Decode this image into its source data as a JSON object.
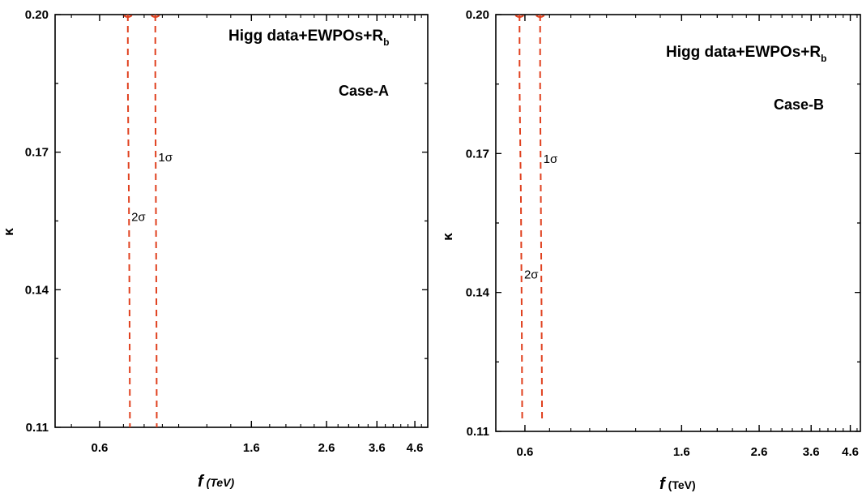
{
  "colors": {
    "contour": "#e0401e",
    "axis": "#000000"
  },
  "chart_data": [
    {
      "type": "line",
      "scale_x": "log",
      "xlim": [
        0.45,
        5.0
      ],
      "ylim": [
        0.11,
        0.2
      ],
      "x_ticks": [
        0.6,
        1.6,
        2.6,
        3.6,
        4.6
      ],
      "y_ticks": [
        0.11,
        0.14,
        0.17,
        0.2
      ],
      "xlabel": "f",
      "xlabel_unit": "(TeV)",
      "ylabel": "κ",
      "annotation": {
        "line1_main": "Higg data+EWPOs+R",
        "line1_sub": "b",
        "case": "Case-A"
      },
      "series": [
        {
          "name": "2σ",
          "points": [
            [
              0.72,
              0.2
            ],
            [
              0.72,
              0.185
            ],
            [
              0.725,
              0.16
            ],
            [
              0.728,
              0.135
            ],
            [
              0.73,
              0.11
            ]
          ]
        },
        {
          "name": "1σ",
          "points": [
            [
              0.86,
              0.2
            ],
            [
              0.86,
              0.185
            ],
            [
              0.863,
              0.16
            ],
            [
              0.866,
              0.135
            ],
            [
              0.868,
              0.11
            ]
          ]
        }
      ]
    },
    {
      "type": "line",
      "scale_x": "log",
      "xlim": [
        0.5,
        4.9
      ],
      "ylim": [
        0.11,
        0.2
      ],
      "x_ticks": [
        0.6,
        1.6,
        2.6,
        3.6,
        4.6
      ],
      "y_ticks": [
        0.11,
        0.14,
        0.17,
        0.2
      ],
      "xlabel": "f",
      "xlabel_unit": "(TeV)",
      "ylabel": "κ",
      "annotation": {
        "line1_main": "Higg data+EWPOs+R",
        "line1_sub": "b",
        "case": "Case-B"
      },
      "series": [
        {
          "name": "2σ",
          "points": [
            [
              0.58,
              0.2
            ],
            [
              0.58,
              0.185
            ],
            [
              0.585,
              0.16
            ],
            [
              0.588,
              0.135
            ],
            [
              0.59,
              0.112
            ]
          ]
        },
        {
          "name": "1σ",
          "points": [
            [
              0.66,
              0.2
            ],
            [
              0.66,
              0.185
            ],
            [
              0.663,
              0.16
            ],
            [
              0.666,
              0.135
            ],
            [
              0.668,
              0.112
            ]
          ]
        }
      ]
    }
  ]
}
